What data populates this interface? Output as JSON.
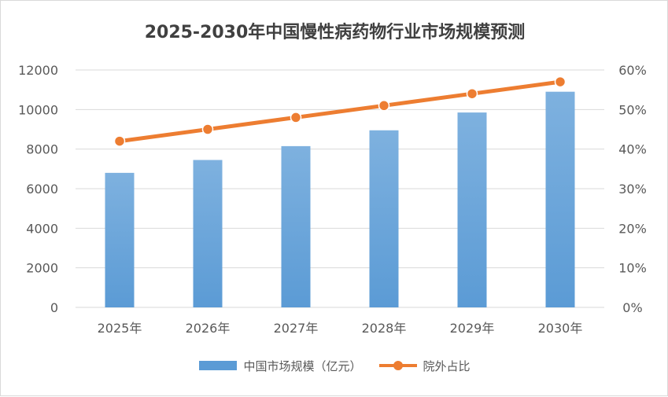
{
  "chart_data": {
    "type": "bar+line",
    "title": "2025-2030年中国慢性病药物行业市场规模预测",
    "categories": [
      "2025年",
      "2026年",
      "2027年",
      "2028年",
      "2029年",
      "2030年"
    ],
    "series": [
      {
        "name": "中国市场规模（亿元）",
        "type": "bar",
        "axis": "left",
        "values": [
          6800,
          7450,
          8150,
          8950,
          9850,
          10900
        ]
      },
      {
        "name": "院外占比",
        "type": "line",
        "axis": "right",
        "values": [
          0.42,
          0.45,
          0.48,
          0.51,
          0.54,
          0.57
        ]
      }
    ],
    "y_left": {
      "min": 0,
      "max": 12000,
      "ticks": [
        0,
        2000,
        4000,
        6000,
        8000,
        10000,
        12000
      ],
      "tick_labels": [
        "0",
        "2000",
        "4000",
        "6000",
        "8000",
        "10000",
        "12000"
      ]
    },
    "y_right": {
      "min": 0,
      "max": 0.6,
      "ticks": [
        0,
        0.1,
        0.2,
        0.3,
        0.4,
        0.5,
        0.6
      ],
      "tick_labels": [
        "0%",
        "10%",
        "20%",
        "30%",
        "40%",
        "50%",
        "60%"
      ]
    },
    "grid": true,
    "legend_position": "bottom",
    "colors": {
      "bar": "#5b9bd5",
      "bar_light": "#7eb1df",
      "line": "#ed7d31",
      "grid": "#d9d9d9",
      "text": "#595959"
    }
  }
}
